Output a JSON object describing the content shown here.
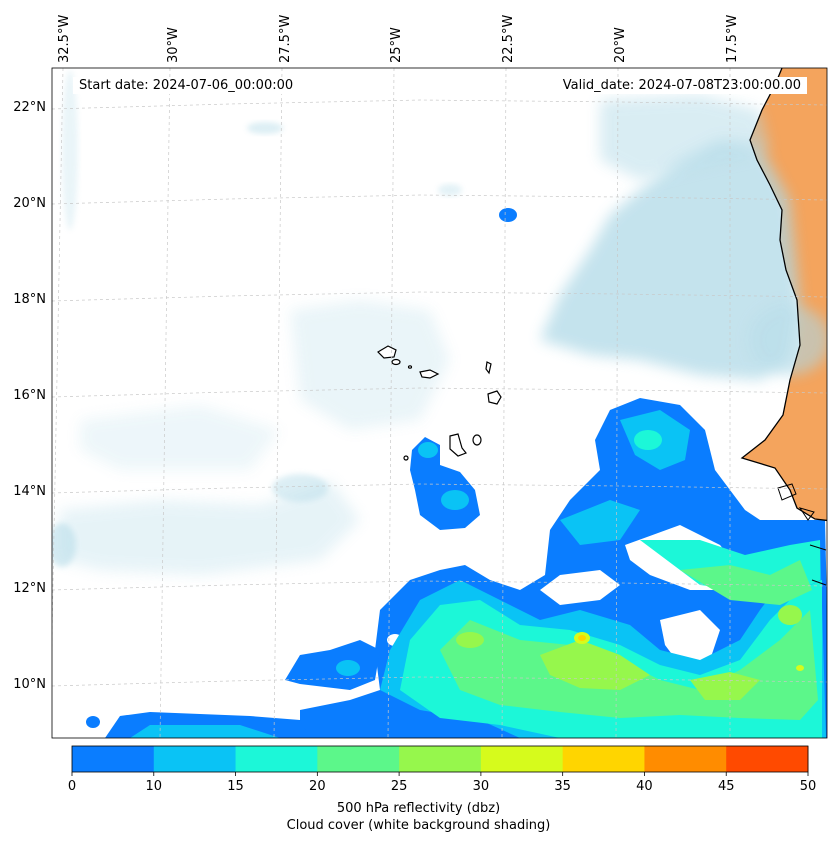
{
  "map": {
    "lon_labels": [
      "32.5°W",
      "30°W",
      "27.5°W",
      "25°W",
      "22.5°W",
      "20°W",
      "17.5°W"
    ],
    "lat_labels": [
      "22°N",
      "20°N",
      "18°N",
      "16°N",
      "14°N",
      "12°N",
      "10°N"
    ],
    "start_date": "Start date: 2024-07-06_00:00:00",
    "valid_date": "Valid_date: 2024-07-08T23:00:00.00"
  },
  "colorbar": {
    "ticks": [
      "0",
      "10",
      "15",
      "20",
      "25",
      "30",
      "35",
      "40",
      "45",
      "50"
    ],
    "colors": [
      "#0a7dff",
      "#0ac3f5",
      "#1cf7d8",
      "#5cf78a",
      "#96f74c",
      "#d6fb1c",
      "#ffd500",
      "#ff8c00",
      "#ff4a00"
    ],
    "label_line1": "500 hPa reflectivity (dbz)",
    "label_line2": "Cloud cover (white background shading)"
  },
  "colors": {
    "land": "#f4a45d",
    "cloud": "#add8e6",
    "coast": "#000000",
    "grid": "#c8c8c8"
  }
}
